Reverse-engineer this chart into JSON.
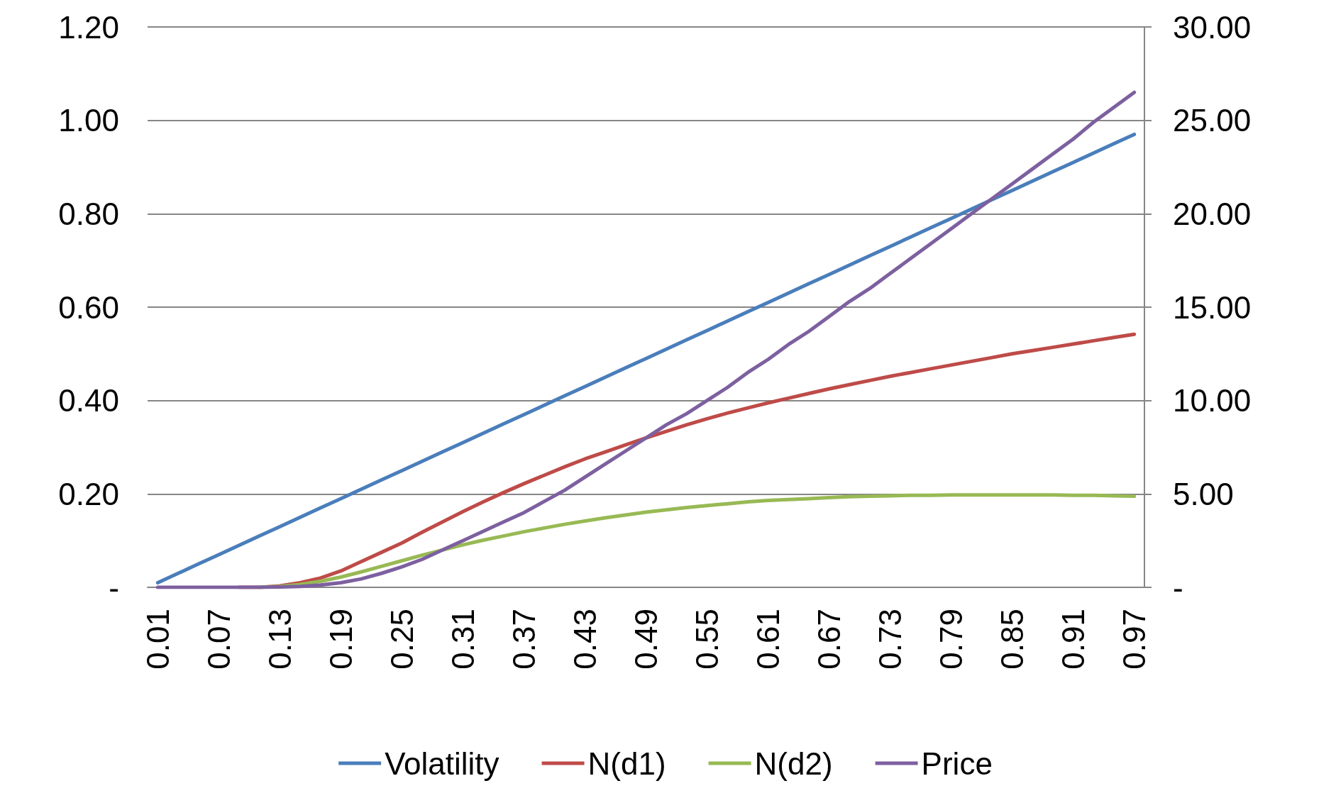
{
  "chart_data": {
    "type": "line",
    "categories": [
      "0.01",
      null,
      null,
      "0.07",
      null,
      null,
      "0.13",
      null,
      null,
      "0.19",
      null,
      null,
      "0.25",
      null,
      null,
      "0.31",
      null,
      null,
      "0.37",
      null,
      null,
      "0.43",
      null,
      null,
      "0.49",
      null,
      null,
      "0.55",
      null,
      null,
      "0.61",
      null,
      null,
      "0.67",
      null,
      null,
      "0.73",
      null,
      null,
      "0.79",
      null,
      null,
      "0.85",
      null,
      null,
      "0.91",
      null,
      null,
      "0.97"
    ],
    "series": [
      {
        "name": "Volatility",
        "color": "#4a7ebb",
        "values": [
          0.01,
          0.03,
          0.05,
          0.07,
          0.09,
          0.11,
          0.13,
          0.15,
          0.17,
          0.19,
          0.21,
          0.23,
          0.25,
          0.27,
          0.29,
          0.31,
          0.33,
          0.35,
          0.37,
          0.39,
          0.41,
          0.43,
          0.45,
          0.47,
          0.49,
          0.51,
          0.53,
          0.55,
          0.57,
          0.59,
          0.61,
          0.63,
          0.65,
          0.67,
          0.69,
          0.71,
          0.73,
          0.75,
          0.77,
          0.79,
          0.81,
          0.83,
          0.85,
          0.87,
          0.89,
          0.91,
          0.93,
          0.95,
          0.97
        ]
      },
      {
        "name": "N(d1)",
        "color": "#be4b48",
        "values": [
          null,
          null,
          null,
          null,
          0,
          0,
          0.003,
          0.01,
          0.02,
          0.035,
          0.055,
          0.075,
          0.095,
          0.118,
          0.14,
          0.162,
          0.183,
          0.203,
          0.222,
          0.24,
          0.258,
          0.275,
          0.29,
          0.305,
          0.32,
          0.334,
          0.348,
          0.361,
          0.373,
          0.384,
          0.395,
          0.405,
          0.415,
          0.425,
          0.434,
          0.443,
          0.452,
          0.46,
          0.468,
          0.476,
          0.484,
          0.492,
          0.5,
          0.507,
          0.514,
          0.521,
          0.528,
          0.535,
          0.542
        ]
      },
      {
        "name": "N(d2)",
        "color": "#98b954",
        "values": [
          null,
          null,
          null,
          null,
          null,
          0,
          0.002,
          0.006,
          0.013,
          0.022,
          0.033,
          0.045,
          0.057,
          0.069,
          0.08,
          0.091,
          0.101,
          0.11,
          0.119,
          0.127,
          0.135,
          0.142,
          0.149,
          0.155,
          0.161,
          0.166,
          0.171,
          0.175,
          0.179,
          0.183,
          0.186,
          0.188,
          0.19,
          0.192,
          0.194,
          0.195,
          0.196,
          0.197,
          0.197,
          0.198,
          0.198,
          0.198,
          0.198,
          0.198,
          0.198,
          0.197,
          0.197,
          0.196,
          0.195
        ]
      },
      {
        "name": "Price",
        "color": "#7d60a0",
        "axis": "y2",
        "values": [
          0,
          0,
          0,
          0,
          0,
          0,
          0.02,
          0.05,
          0.12,
          0.25,
          0.45,
          0.75,
          1.1,
          1.5,
          2.0,
          2.5,
          3.0,
          3.5,
          4.0,
          4.6,
          5.2,
          5.9,
          6.6,
          7.3,
          8.0,
          8.7,
          9.3,
          10.0,
          10.7,
          11.5,
          12.2,
          13.0,
          13.7,
          14.5,
          15.3,
          16.0,
          16.8,
          17.6,
          18.4,
          19.2,
          20.0,
          20.8,
          21.6,
          22.4,
          23.2,
          24.0,
          24.9,
          25.7,
          26.5
        ]
      }
    ],
    "ylim": [
      0,
      1.2
    ],
    "yticks": [
      {
        "value": 0,
        "label": "-"
      },
      {
        "value": 0.2,
        "label": "0.20"
      },
      {
        "value": 0.4,
        "label": "0.40"
      },
      {
        "value": 0.6,
        "label": "0.60"
      },
      {
        "value": 0.8,
        "label": "0.80"
      },
      {
        "value": 1,
        "label": "1.00"
      },
      {
        "value": 1.2,
        "label": "1.20"
      }
    ],
    "y2lim": [
      0,
      30
    ],
    "y2ticks": [
      {
        "value": 0,
        "label": "-"
      },
      {
        "value": 5,
        "label": "5.00"
      },
      {
        "value": 10,
        "label": "10.00"
      },
      {
        "value": 15,
        "label": "15.00"
      },
      {
        "value": 20,
        "label": "20.00"
      },
      {
        "value": 25,
        "label": "25.00"
      },
      {
        "value": 30,
        "label": "30.00"
      }
    ],
    "grid": "y",
    "legend": "bottom",
    "marker": "none",
    "line_style": "solid"
  }
}
